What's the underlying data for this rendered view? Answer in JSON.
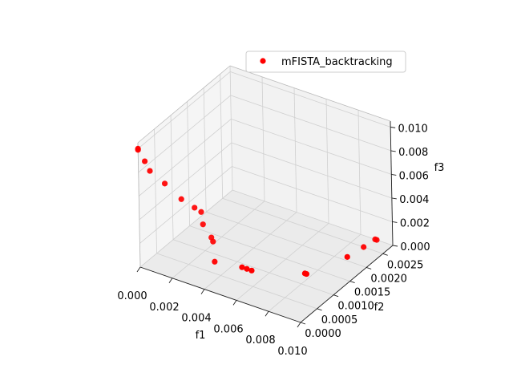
{
  "chart_data": {
    "type": "scatter",
    "projection": "3d",
    "xlabel": "f1",
    "ylabel": "f2",
    "zlabel": "f3",
    "xlim": [
      0.0,
      0.01
    ],
    "ylim": [
      0.0,
      0.0028
    ],
    "zlim": [
      0.0,
      0.0105
    ],
    "x_ticks": [
      "0.000",
      "0.002",
      "0.004",
      "0.006",
      "0.008",
      "0.010"
    ],
    "y_ticks": [
      "0.0000",
      "0.0005",
      "0.0010",
      "0.0015",
      "0.0020",
      "0.0025"
    ],
    "z_ticks": [
      "0.000",
      "0.002",
      "0.004",
      "0.006",
      "0.008",
      "0.010"
    ],
    "grid": true,
    "legend_position": "top-right",
    "series": [
      {
        "name": "mFISTA_backtracking",
        "color": "#ff0000",
        "marker": "circle",
        "points": [
          {
            "x": 0.0,
            "y": 0.0,
            "z": 0.01
          },
          {
            "x": 0.0,
            "y": 0.0,
            "z": 0.0099
          },
          {
            "x": 0.0002,
            "y": 0.0001,
            "z": 0.0088
          },
          {
            "x": 0.0003,
            "y": 0.0002,
            "z": 0.0078
          },
          {
            "x": 0.0008,
            "y": 0.0004,
            "z": 0.0065
          },
          {
            "x": 0.0014,
            "y": 0.0006,
            "z": 0.005
          },
          {
            "x": 0.0018,
            "y": 0.0008,
            "z": 0.004
          },
          {
            "x": 0.002,
            "y": 0.0009,
            "z": 0.0035
          },
          {
            "x": 0.0021,
            "y": 0.0009,
            "z": 0.0025
          },
          {
            "x": 0.0024,
            "y": 0.001,
            "z": 0.0013
          },
          {
            "x": 0.0025,
            "y": 0.001,
            "z": 0.001
          },
          {
            "x": 0.003,
            "y": 0.0008,
            "z": 0.0
          },
          {
            "x": 0.0045,
            "y": 0.0009,
            "z": 0.0
          },
          {
            "x": 0.0048,
            "y": 0.0009,
            "z": 0.0
          },
          {
            "x": 0.0051,
            "y": 0.0009,
            "z": 0.0
          },
          {
            "x": 0.0076,
            "y": 0.0013,
            "z": 0.0
          },
          {
            "x": 0.0077,
            "y": 0.0013,
            "z": 0.0
          },
          {
            "x": 0.0086,
            "y": 0.0021,
            "z": 0.0
          },
          {
            "x": 0.0088,
            "y": 0.0025,
            "z": 0.0
          },
          {
            "x": 0.0089,
            "y": 0.0028,
            "z": 0.0
          },
          {
            "x": 0.009,
            "y": 0.0028,
            "z": 0.0
          }
        ]
      }
    ]
  }
}
